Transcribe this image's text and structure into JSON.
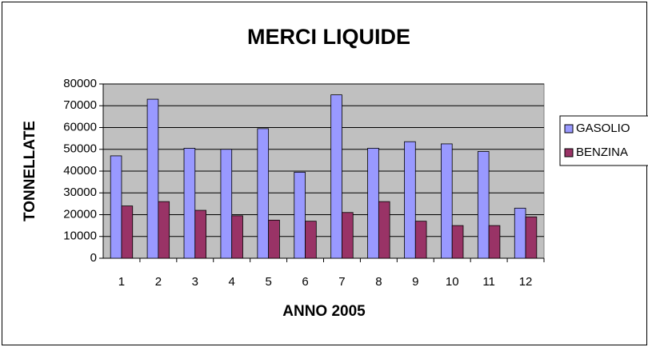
{
  "chart_data": {
    "type": "bar",
    "title": "MERCI LIQUIDE",
    "x_label": "ANNO 2005",
    "y_label": "TONNELLATE",
    "categories": [
      "1",
      "2",
      "3",
      "4",
      "5",
      "6",
      "7",
      "8",
      "9",
      "10",
      "11",
      "12"
    ],
    "series": [
      {
        "name": "GASOLIO",
        "color": "#9999ff",
        "values": [
          47000,
          73000,
          50500,
          50000,
          59500,
          39500,
          75000,
          50500,
          53500,
          52500,
          49000,
          23000
        ]
      },
      {
        "name": "BENZINA",
        "color": "#993366",
        "values": [
          24000,
          26000,
          22000,
          19500,
          17500,
          17000,
          21000,
          26000,
          17000,
          15000,
          15000,
          19000
        ]
      }
    ],
    "ylim": [
      0,
      80000
    ],
    "yticks": [
      0,
      10000,
      20000,
      30000,
      40000,
      50000,
      60000,
      70000,
      80000
    ],
    "grid": true,
    "legend": "right"
  }
}
